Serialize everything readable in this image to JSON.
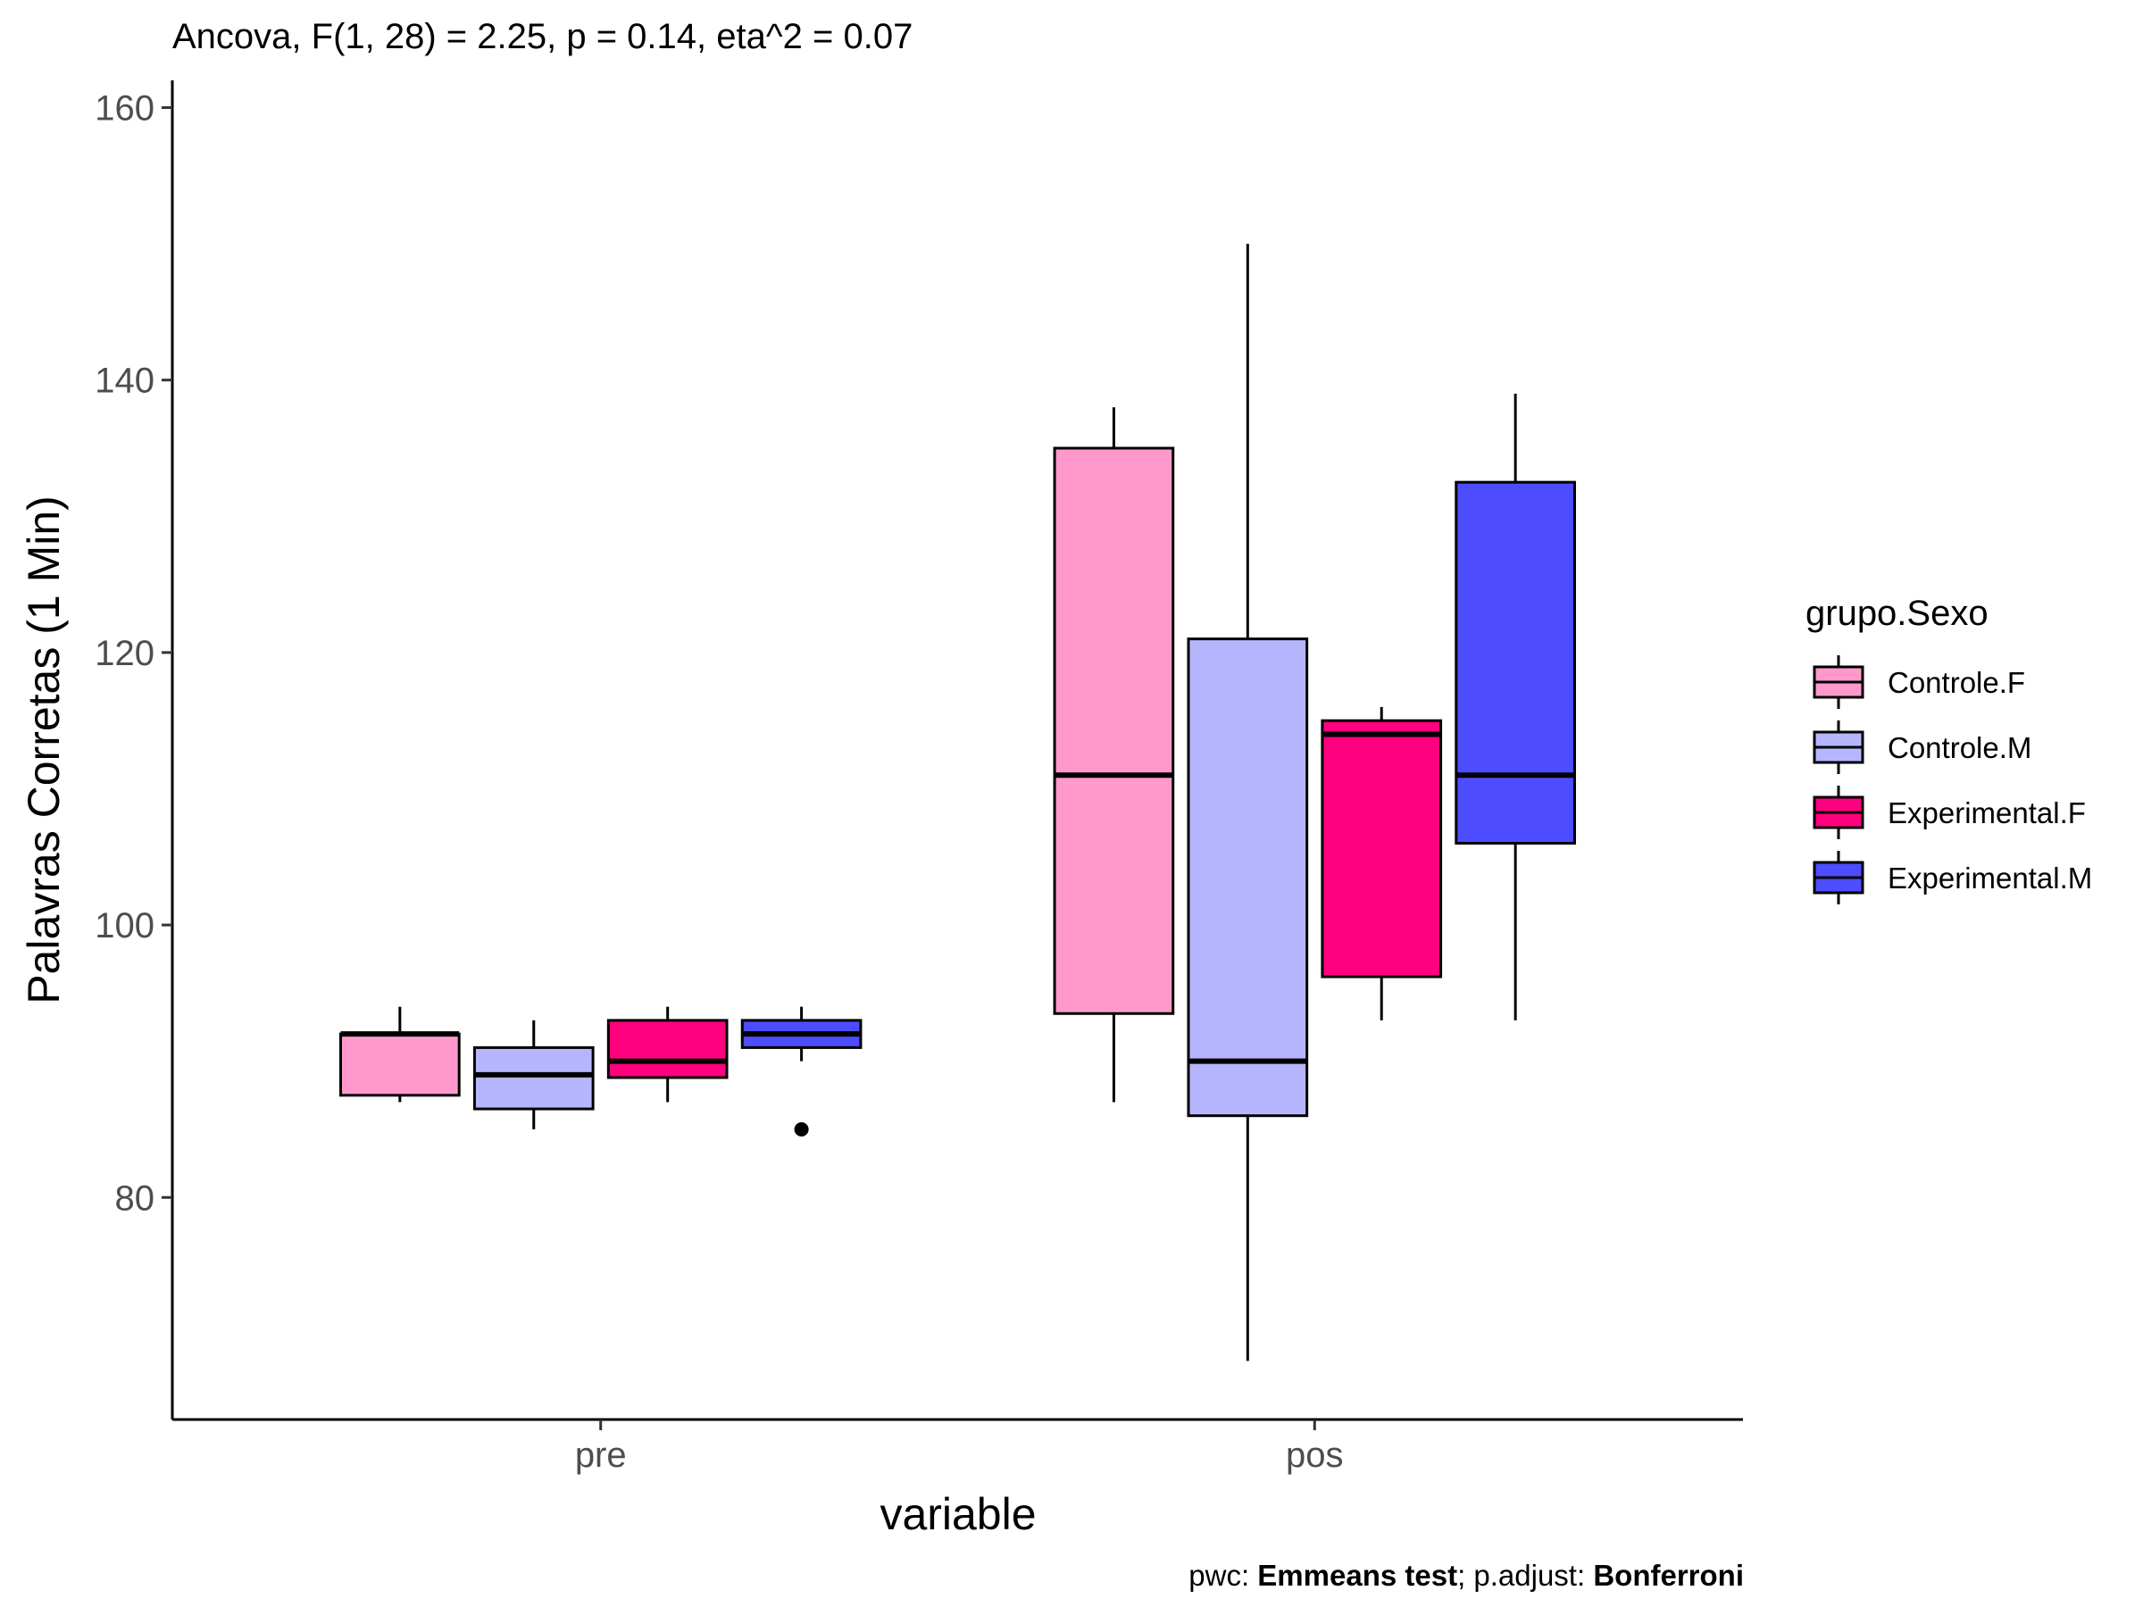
{
  "chart_data": {
    "type": "boxplot",
    "title": "Ancova, F(1, 28) = 2.25, p = 0.14, eta^2 = 0.07",
    "xlabel": "variable",
    "ylabel": "Palavras Corretas (1 Min)",
    "caption": {
      "prefix": "pwc: ",
      "method": "Emmeans test",
      "middle": "; p.adjust: ",
      "adjust": "Bonferroni"
    },
    "ylim": [
      63.7,
      162
    ],
    "yticks": [
      80,
      100,
      120,
      140,
      160
    ],
    "ytick_labels": [
      "80",
      "100",
      "120",
      "140",
      "160"
    ],
    "categories": [
      "pre",
      "pos"
    ],
    "grid": false,
    "legend": {
      "title": "grupo.Sexo",
      "position": "right"
    },
    "series": [
      {
        "name": "Controle.F",
        "color": "#FF99CC",
        "boxes": [
          {
            "category": "pre",
            "lower_whisker": 87,
            "q1": 87.5,
            "median": 92,
            "q3": 92,
            "upper_whisker": 94,
            "outliers": []
          },
          {
            "category": "pos",
            "lower_whisker": 87,
            "q1": 93.5,
            "median": 111,
            "q3": 135,
            "upper_whisker": 138,
            "outliers": []
          }
        ]
      },
      {
        "name": "Controle.M",
        "color": "#B6B6FF",
        "boxes": [
          {
            "category": "pre",
            "lower_whisker": 85,
            "q1": 86.5,
            "median": 89,
            "q3": 91,
            "upper_whisker": 93,
            "outliers": []
          },
          {
            "category": "pos",
            "lower_whisker": 68,
            "q1": 86,
            "median": 90,
            "q3": 121,
            "upper_whisker": 150,
            "outliers": []
          }
        ]
      },
      {
        "name": "Experimental.F",
        "color": "#FF007F",
        "boxes": [
          {
            "category": "pre",
            "lower_whisker": 87,
            "q1": 88.8,
            "median": 90,
            "q3": 93,
            "upper_whisker": 94,
            "outliers": []
          },
          {
            "category": "pos",
            "lower_whisker": 93,
            "q1": 96.2,
            "median": 114,
            "q3": 115,
            "upper_whisker": 116,
            "outliers": []
          }
        ]
      },
      {
        "name": "Experimental.M",
        "color": "#4D4DFF",
        "boxes": [
          {
            "category": "pre",
            "lower_whisker": 90,
            "q1": 91,
            "median": 92,
            "q3": 93,
            "upper_whisker": 94,
            "outliers": [
              85
            ]
          },
          {
            "category": "pos",
            "lower_whisker": 93,
            "q1": 106,
            "median": 111,
            "q3": 132.5,
            "upper_whisker": 139,
            "outliers": []
          }
        ]
      }
    ]
  }
}
